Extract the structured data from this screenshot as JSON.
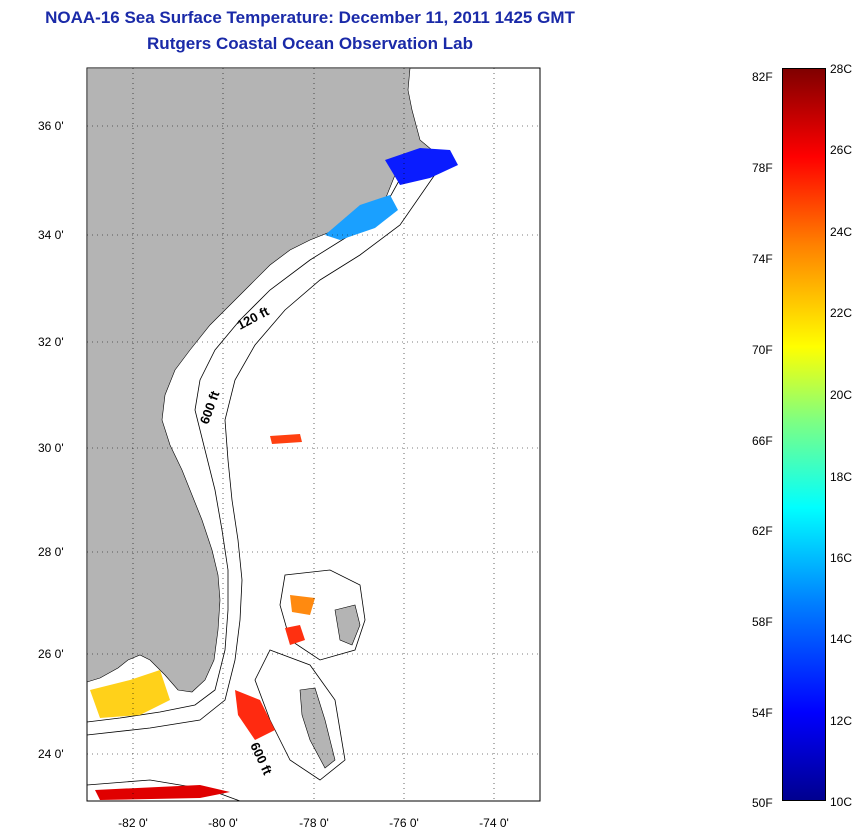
{
  "header": {
    "title_line1": "NOAA-16 Sea Surface Temperature:  December 11, 2011 1425 GMT",
    "title_line2": "Rutgers Coastal Ocean Observation Lab"
  },
  "map": {
    "lat_ticks": [
      "36 0'",
      "34 0'",
      "32 0'",
      "30 0'",
      "28 0'",
      "26 0'",
      "24 0'"
    ],
    "lon_ticks": [
      "-82 0'",
      "-80 0'",
      "-78 0'",
      "-76 0'",
      "-74 0'"
    ],
    "contour_labels": [
      "120 ft",
      "600 ft",
      "600 ft"
    ],
    "colors": {
      "land": "#b4b4b4",
      "ocean": "#ffffff",
      "title": "#1a2aa8"
    }
  },
  "colorbar": {
    "fahrenheit": [
      "82F",
      "78F",
      "74F",
      "70F",
      "66F",
      "62F",
      "58F",
      "54F",
      "50F"
    ],
    "celsius": [
      "28C",
      "26C",
      "24C",
      "22C",
      "20C",
      "18C",
      "16C",
      "14C",
      "12C",
      "10C"
    ]
  }
}
